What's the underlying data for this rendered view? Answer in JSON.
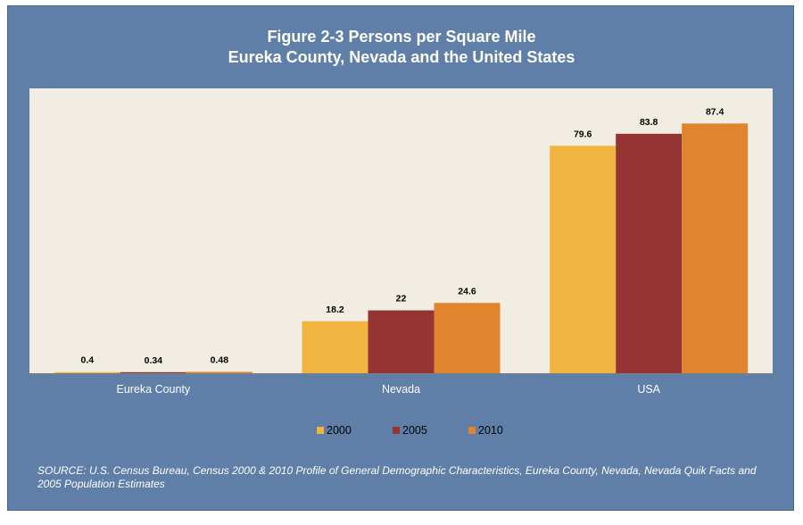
{
  "chart_data": {
    "type": "bar",
    "title": "Figure 2-3 Persons per Square Mile",
    "subtitle": "Eureka County, Nevada and the United States",
    "categories": [
      "Eureka County",
      "Nevada",
      "USA"
    ],
    "series": [
      {
        "name": "2000",
        "values": [
          0.4,
          18.2,
          79.6
        ],
        "color": "#f2b441",
        "labels": [
          "0.4",
          "18.2",
          "79.6"
        ]
      },
      {
        "name": "2005",
        "values": [
          0.34,
          22,
          83.8
        ],
        "color": "#943534",
        "labels": [
          "0.34",
          "22",
          "83.8"
        ]
      },
      {
        "name": "2010",
        "values": [
          0.48,
          24.6,
          87.4
        ],
        "color": "#e0852e",
        "labels": [
          "0.48",
          "24.6",
          "87.4"
        ]
      }
    ],
    "ylim": [
      0,
      90
    ],
    "grid": false,
    "legend_position": "bottom"
  },
  "source_note": "SOURCE: U.S. Census Bureau, Census 2000 & 2010 Profile of General Demographic Characteristics, Eureka County, Nevada, Nevada Quik Facts and 2005 Population Estimates",
  "colors": {
    "frame_background": "#5f7fa8",
    "plot_background": "#f1ede3"
  }
}
